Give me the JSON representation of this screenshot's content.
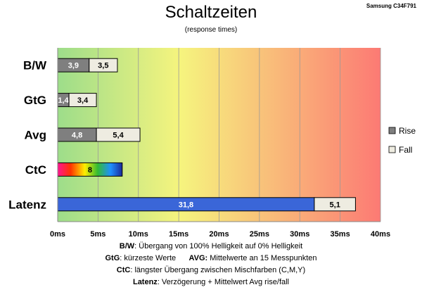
{
  "title": "Schaltzeiten",
  "subtitle": "(response times)",
  "model": "Samsung C34F791",
  "colors": {
    "rise": "#7f7f7f",
    "fall": "#eeece1",
    "latency_rise": "#3a66d8",
    "background_gradient": [
      "#9ddd8a",
      "#f6f47e",
      "#fc7a74"
    ]
  },
  "chart_data": {
    "type": "bar",
    "orientation": "horizontal",
    "stacked": true,
    "categories": [
      "B/W",
      "GtG",
      "Avg",
      "CtC",
      "Latenz"
    ],
    "series": [
      {
        "name": "Rise",
        "values": [
          3.9,
          1.4,
          4.8,
          8,
          31.8
        ]
      },
      {
        "name": "Fall",
        "values": [
          3.5,
          3.4,
          5.4,
          null,
          5.1
        ]
      }
    ],
    "value_labels": {
      "rise": [
        "3,9",
        "1,4",
        "4,8",
        "8",
        "31,8"
      ],
      "fall": [
        "3,5",
        "3,4",
        "5,4",
        "",
        "5,1"
      ]
    },
    "xlim": [
      0,
      40
    ],
    "xticks": [
      "0ms",
      "5ms",
      "10ms",
      "15ms",
      "20ms",
      "25ms",
      "30ms",
      "35ms",
      "40ms"
    ],
    "grid": true,
    "legend_position": "right"
  },
  "notes": [
    {
      "label": "B/W",
      "text": ":  Übergang von 100% Helligkeit auf 0% Helligkeit"
    },
    {
      "label": "GtG",
      "text": ": kürzeste  Werte",
      "label2": "AVG:",
      "text2": " Mittelwerte  an 15 Messpunkten"
    },
    {
      "label": "CtC",
      "text": ": längster Übergang  zwischen Mischfarben (C,M,Y)"
    },
    {
      "label": "Latenz",
      "text": ": Verzögerung  + Mittelwert  Avg rise/fall"
    }
  ]
}
